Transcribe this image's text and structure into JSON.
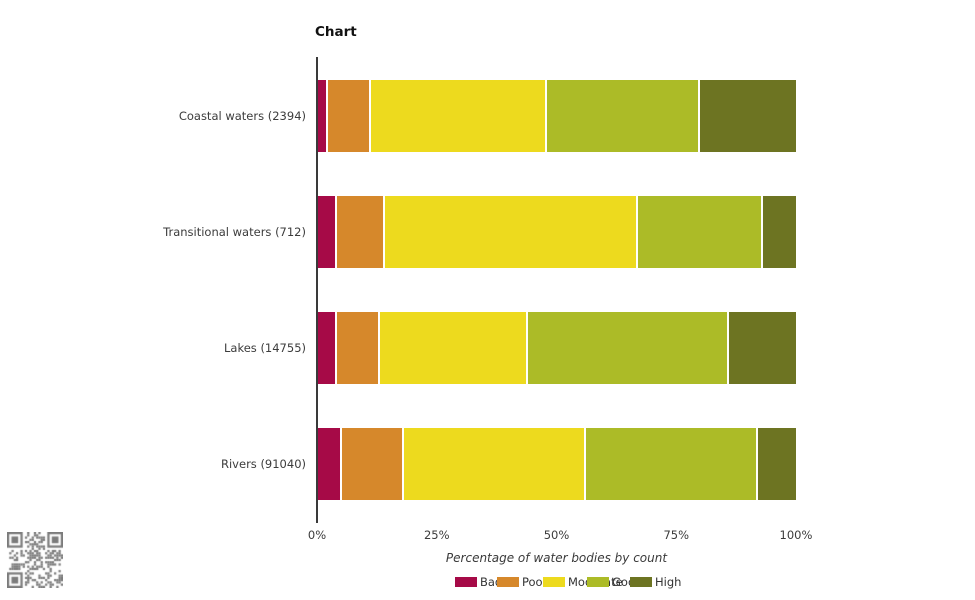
{
  "window": {
    "title": "Chart"
  },
  "chart_data": {
    "type": "bar",
    "orientation": "horizontal-stacked",
    "title": "Chart",
    "xlabel": "Percentage of water bodies by count",
    "ylabel": "",
    "categories": [
      "Coastal waters (2394)",
      "Transitional waters (712)",
      "Lakes (14755)",
      "Rivers (91040)"
    ],
    "series": [
      {
        "name": "Bad",
        "color": "#A60A47",
        "values": [
          2,
          4,
          4,
          5
        ]
      },
      {
        "name": "Poor",
        "color": "#D6882B",
        "values": [
          9,
          10,
          9,
          13
        ]
      },
      {
        "name": "Moderate",
        "color": "#EDDA1E",
        "values": [
          37,
          53,
          31,
          38
        ]
      },
      {
        "name": "Good",
        "color": "#ACBB27",
        "values": [
          32,
          26,
          42,
          36
        ]
      },
      {
        "name": "High",
        "color": "#6D7422",
        "values": [
          20,
          7,
          14,
          8
        ]
      }
    ],
    "x_ticks": [
      "0%",
      "25%",
      "50%",
      "75%",
      "100%"
    ],
    "xlim": [
      0,
      100
    ],
    "grid": false,
    "legend_position": "bottom",
    "legend_items": [
      "Bad",
      "Poor",
      "Moderate",
      "Good",
      "High"
    ]
  },
  "decorations": {
    "qr_watermark": "qr-code",
    "qr_color": "#7b7b7b"
  },
  "colors": {
    "axis": "#3a3a3a",
    "text": "#3c3c3c",
    "background": "#ffffff"
  }
}
